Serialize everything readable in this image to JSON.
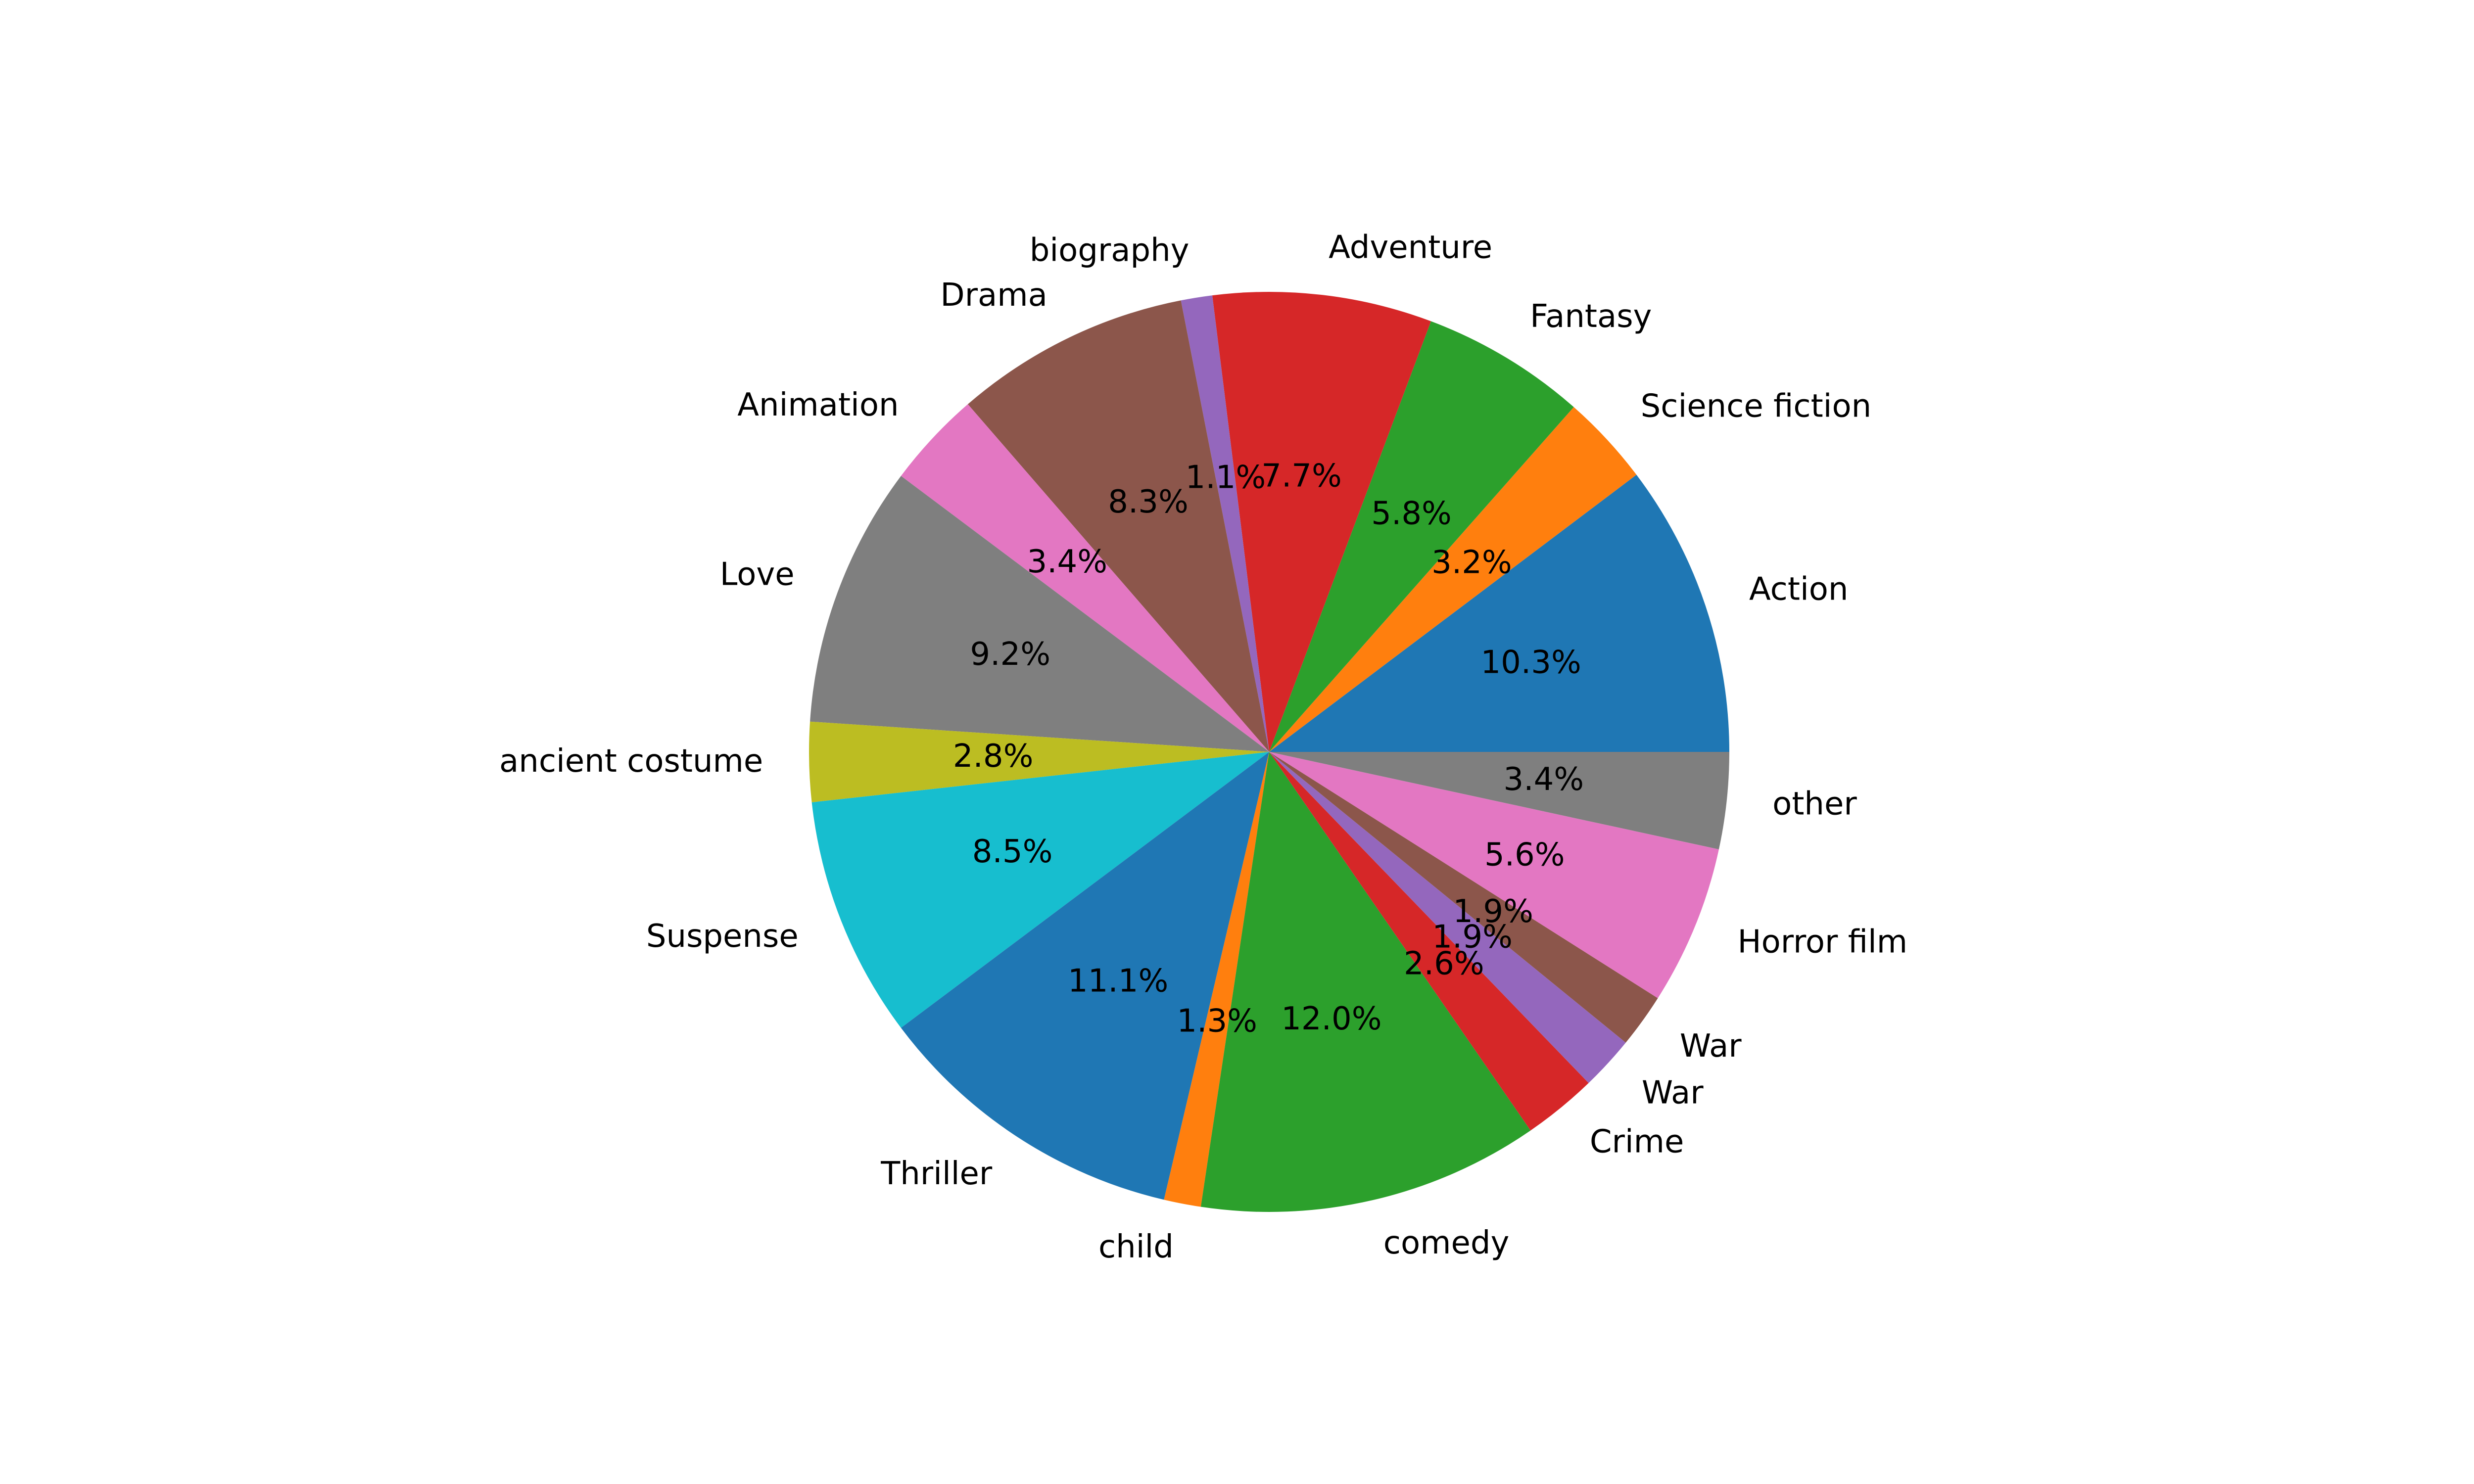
{
  "chart_data": {
    "type": "pie",
    "title": "",
    "start_angle_deg": 0,
    "direction": "counterclockwise",
    "categories": [
      "Action",
      "Science fiction",
      "Fantasy",
      "Adventure",
      "biography",
      "Drama",
      "Animation",
      "Love",
      "ancient costume",
      "Suspense",
      "Thriller",
      "child",
      "comedy",
      "Crime",
      "War",
      "War",
      "Horror film",
      "other"
    ],
    "values": [
      10.3,
      3.2,
      5.8,
      7.7,
      1.1,
      8.3,
      3.4,
      9.2,
      2.8,
      8.5,
      11.1,
      1.3,
      12.0,
      2.6,
      1.9,
      1.9,
      5.6,
      3.4
    ],
    "value_labels": [
      "10.3%",
      "3.2%",
      "5.8%",
      "7.7%",
      "1.1%",
      "8.3%",
      "3.4%",
      "9.2%",
      "2.8%",
      "8.5%",
      "11.1%",
      "1.3%",
      "12.0%",
      "2.6%",
      "1.9%",
      "1.9%",
      "5.6%",
      "3.4%"
    ],
    "colors": [
      "#1f77b4",
      "#ff7f0e",
      "#2ca02c",
      "#d62728",
      "#9467bd",
      "#8c564b",
      "#e377c2",
      "#7f7f7f",
      "#bcbd22",
      "#17becf",
      "#1f77b4",
      "#ff7f0e",
      "#2ca02c",
      "#d62728",
      "#9467bd",
      "#8c564b",
      "#e377c2",
      "#7f7f7f"
    ]
  }
}
